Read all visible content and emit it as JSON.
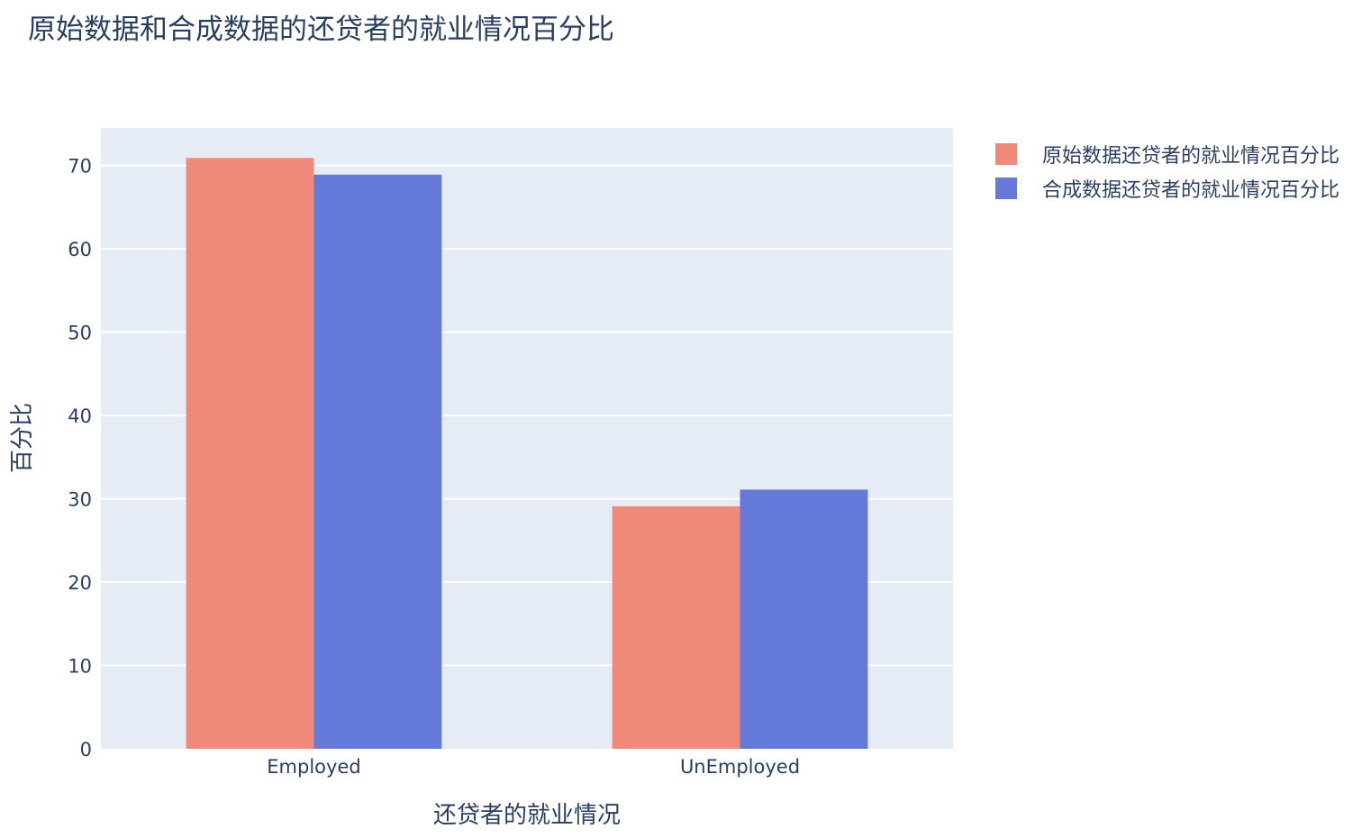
{
  "chart_data": {
    "type": "bar",
    "title": "原始数据和合成数据的还贷者的就业情况百分比",
    "xlabel": "还贷者的就业情况",
    "ylabel": "百分比",
    "categories": [
      "Employed",
      "UnEmployed"
    ],
    "series": [
      {
        "name": "原始数据还贷者的就业情况百分比",
        "values": [
          70.9,
          29.1
        ],
        "color": "#EF8A7B"
      },
      {
        "name": "合成数据还贷者的就业情况百分比",
        "values": [
          68.9,
          31.1
        ],
        "color": "#6479D8"
      }
    ],
    "ylim": [
      0,
      74.5
    ],
    "yticks": [
      0,
      10,
      20,
      30,
      40,
      50,
      60,
      70
    ],
    "grid": true,
    "legend_position": "top-right",
    "plot_bg": "#E5ECF6"
  }
}
